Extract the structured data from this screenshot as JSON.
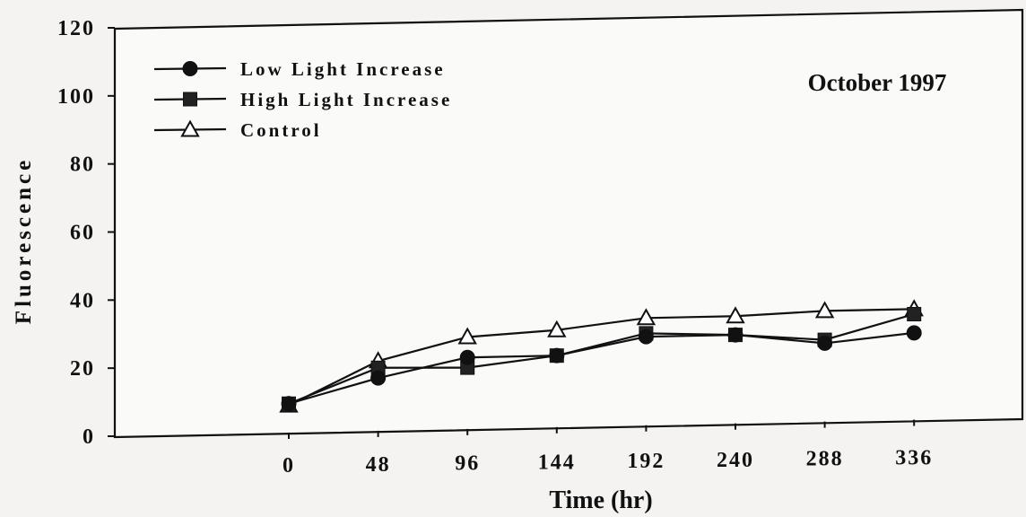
{
  "chart_data": {
    "type": "line",
    "title": "",
    "annotation": "October 1997",
    "xlabel": "Time (hr)",
    "ylabel": "Fluorescence",
    "x": [
      0,
      48,
      96,
      144,
      192,
      240,
      288,
      336
    ],
    "ylim": [
      0,
      120
    ],
    "yticks": [
      0,
      20,
      40,
      60,
      80,
      100,
      120
    ],
    "legend_position": "top-left",
    "grid": false,
    "series": [
      {
        "name": "Low Light Increase",
        "marker": "circle",
        "values": [
          8.5,
          15.5,
          21,
          21,
          26,
          26,
          23,
          25.5
        ]
      },
      {
        "name": "High Light Increase",
        "marker": "square",
        "values": [
          8.5,
          18.5,
          18,
          21,
          27,
          26,
          24,
          31
        ]
      },
      {
        "name": "Control",
        "marker": "triangle",
        "values": [
          8,
          20.5,
          27,
          28.5,
          31.5,
          31.5,
          32.5,
          32.5
        ]
      }
    ]
  }
}
